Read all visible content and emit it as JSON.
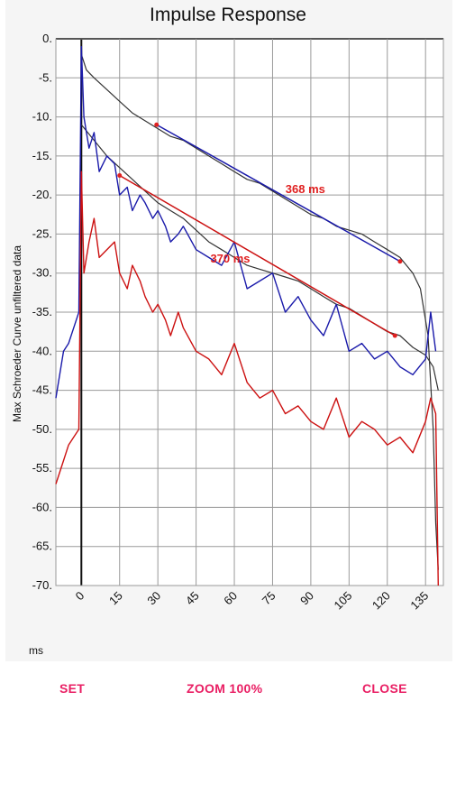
{
  "dialog": {
    "title": "Impulse Response",
    "buttons": {
      "set": "SET",
      "zoom": "ZOOM 100%",
      "close": "CLOSE"
    }
  },
  "chart_data": {
    "type": "line",
    "title": "Impulse Response",
    "ylabel": "Max Schroeder Curve unfiltered data",
    "xlabel": "ms",
    "xlim": [
      -10,
      142
    ],
    "ylim": [
      -70,
      0
    ],
    "xticks": [
      "0",
      "15",
      "30",
      "45",
      "60",
      "75",
      "90",
      "105",
      "120",
      "135"
    ],
    "yticks": [
      "0.",
      "-5.",
      "-10.",
      "-15.",
      "-20.",
      "-25.",
      "-30.",
      "-35.",
      "-40.",
      "-45.",
      "-50.",
      "-55.",
      "-60.",
      "-65.",
      "-70."
    ],
    "grid": true,
    "colors": {
      "blue": "#1a1aaa",
      "red": "#cc1111",
      "schroeder": "#333333",
      "button": "#e91e63"
    },
    "series": [
      {
        "x": [
          0,
          2,
          5,
          10,
          15,
          20,
          25,
          30,
          35,
          40,
          45,
          50,
          55,
          60,
          65,
          70,
          75,
          80,
          85,
          90,
          95,
          100,
          105,
          110,
          115,
          120,
          125,
          130,
          133,
          136,
          138,
          139,
          140
        ],
        "values": [
          -2,
          -4,
          -5,
          -6.5,
          -8,
          -9.5,
          -10.5,
          -11.5,
          -12.5,
          -13,
          -14,
          -15,
          -16,
          -17,
          -18,
          -18.5,
          -19.5,
          -20.5,
          -21.5,
          -22.5,
          -23,
          -24,
          -24.5,
          -25,
          -26,
          -27,
          -28,
          -30,
          -32,
          -38,
          -50,
          -62,
          -68
        ]
      },
      {
        "x": [
          0,
          5,
          10,
          15,
          20,
          25,
          30,
          35,
          40,
          45,
          50,
          55,
          60,
          65,
          70,
          75,
          80,
          85,
          90,
          95,
          100,
          105,
          110,
          115,
          120,
          125,
          130,
          135,
          138,
          140
        ],
        "values": [
          -11,
          -13,
          -15,
          -16.5,
          -18,
          -19.5,
          -21,
          -22,
          -23,
          -24.5,
          -26,
          -27,
          -28,
          -29,
          -29.5,
          -30,
          -30.5,
          -31,
          -32,
          -33,
          -34,
          -34.5,
          -35.5,
          -36.5,
          -37.5,
          -38,
          -39.5,
          -40.5,
          -42,
          -45
        ]
      },
      {
        "x": [
          -10,
          -7,
          -5,
          -3,
          -1,
          0,
          1,
          3,
          5,
          7,
          10,
          13,
          15,
          18,
          20,
          23,
          25,
          28,
          30,
          33,
          35,
          38,
          40,
          45,
          50,
          55,
          60,
          65,
          70,
          75,
          80,
          85,
          90,
          95,
          100,
          105,
          110,
          115,
          120,
          125,
          130,
          135,
          137,
          139
        ],
        "values": [
          -46,
          -40,
          -39,
          -37,
          -35,
          -1,
          -10,
          -14,
          -12,
          -17,
          -15,
          -16,
          -20,
          -19,
          -22,
          -20,
          -21,
          -23,
          -22,
          -24,
          -26,
          -25,
          -24,
          -27,
          -28,
          -29,
          -26,
          -32,
          -31,
          -30,
          -35,
          -33,
          -36,
          -38,
          -34,
          -40,
          -39,
          -41,
          -40,
          -42,
          -43,
          -41,
          -35,
          -40
        ]
      },
      {
        "x": [
          -10,
          -7,
          -5,
          -3,
          -1,
          0,
          1,
          3,
          5,
          7,
          10,
          13,
          15,
          18,
          20,
          23,
          25,
          28,
          30,
          33,
          35,
          38,
          40,
          45,
          50,
          55,
          60,
          65,
          70,
          75,
          80,
          85,
          90,
          95,
          100,
          105,
          110,
          115,
          120,
          125,
          130,
          135,
          137,
          139,
          140
        ],
        "values": [
          -57,
          -54,
          -52,
          -51,
          -50,
          -17,
          -30,
          -26,
          -23,
          -28,
          -27,
          -26,
          -30,
          -32,
          -29,
          -31,
          -33,
          -35,
          -34,
          -36,
          -38,
          -35,
          -37,
          -40,
          -41,
          -43,
          -39,
          -44,
          -46,
          -45,
          -48,
          -47,
          -49,
          -50,
          -46,
          -51,
          -49,
          -50,
          -52,
          -51,
          -53,
          -49,
          -46,
          -48,
          -70
        ]
      }
    ],
    "fits": [
      {
        "label": "368 ms",
        "x": [
          29.5,
          125
        ],
        "values": [
          -11,
          -28.5
        ]
      },
      {
        "label": "370 ms",
        "x": [
          15,
          123
        ],
        "values": [
          -17.5,
          -38
        ]
      }
    ]
  }
}
